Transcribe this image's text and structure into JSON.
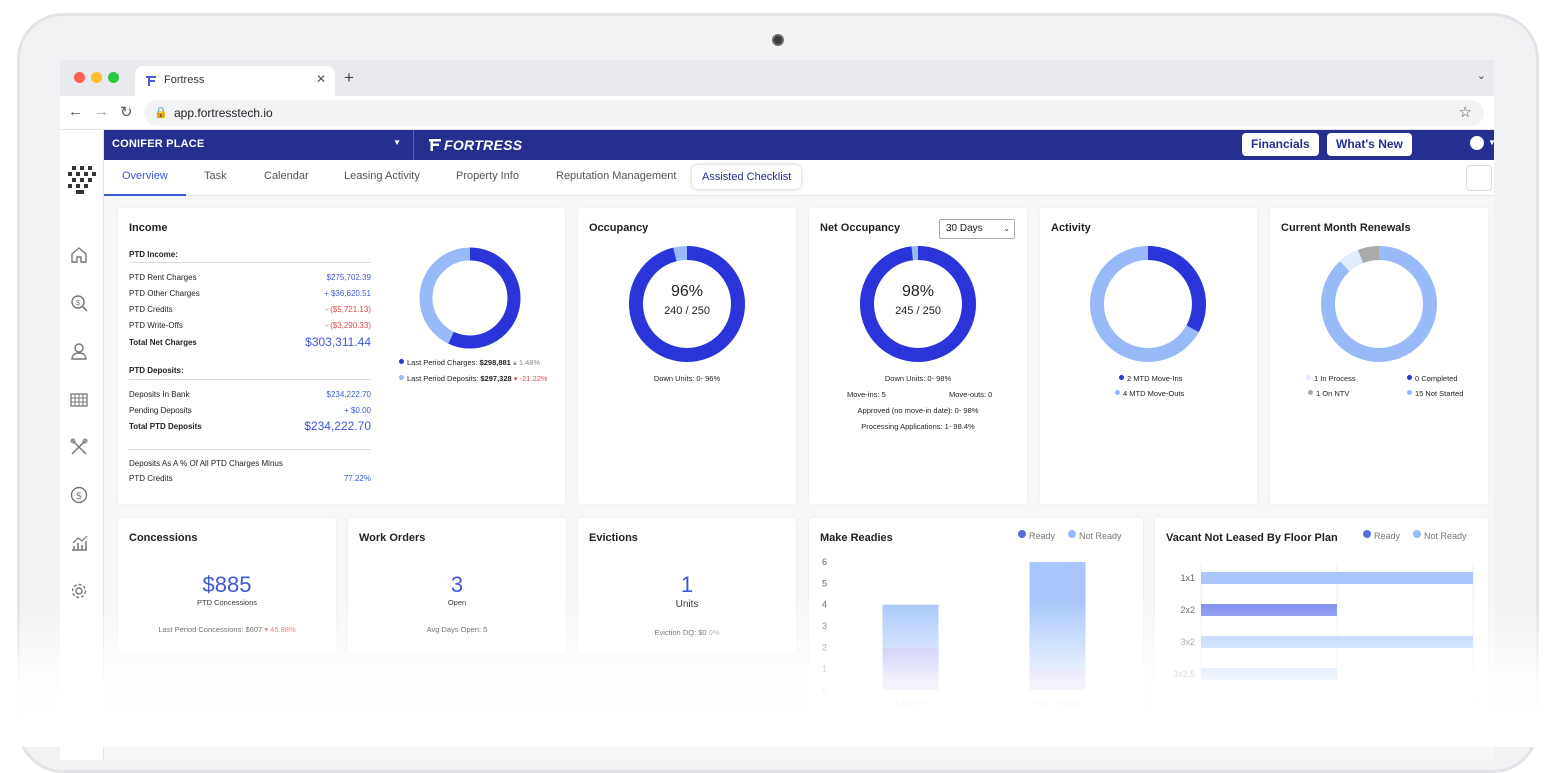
{
  "browser": {
    "tab_title": "Fortress",
    "url": "app.fortresstech.io"
  },
  "topbar": {
    "property": "CONIFER PLACE",
    "brand": "FORTRESS",
    "financials_label": "Financials",
    "whats_new_label": "What's New",
    "help_label": "?"
  },
  "nav": {
    "tabs": [
      "Overview",
      "Task",
      "Calendar",
      "Leasing Activity",
      "Property Info",
      "Reputation Management"
    ],
    "checklist_label": "Assisted Checklist"
  },
  "income": {
    "title": "Income",
    "ptd_income_header": "PTD Income:",
    "rows": [
      {
        "label": "PTD Rent Charges",
        "value": "$275,702.39"
      },
      {
        "label": "PTD Other Charges",
        "value": "+ $36,620.51"
      },
      {
        "label": "PTD Credits",
        "value": "- ($5,721.13)"
      },
      {
        "label": "PTD Write-Offs",
        "value": "- ($3,290.33)"
      }
    ],
    "total_net_label": "Total Net Charges",
    "total_net_value": "$303,311.44",
    "ptd_deposits_header": "PTD Deposits:",
    "deposit_rows": [
      {
        "label": "Deposits In Bank",
        "value": "$234,222.70"
      },
      {
        "label": "Pending Deposits",
        "value": "+ $0.00"
      }
    ],
    "total_deposits_label": "Total PTD Deposits",
    "total_deposits_value": "$234,222.70",
    "pct_label_1": "Deposits As A % Of All PTD Charges Minus",
    "pct_label_2": "PTD Credits",
    "pct_value": "77.22%",
    "legend_charges_label": "Last Period Charges:",
    "legend_charges_value": "$298,881",
    "legend_charges_change": "1.48%",
    "legend_deposits_label": "Last Period Deposits:",
    "legend_deposits_value": "$297,328",
    "legend_deposits_change": "-21.22%",
    "donut_fraction": 0.57
  },
  "occupancy": {
    "title": "Occupancy",
    "percent": "96%",
    "ratio": "240 / 250",
    "down_units": "Down Units: 0- 96%",
    "fraction": 0.96
  },
  "net_occupancy": {
    "title": "Net Occupancy",
    "period": "30 Days",
    "percent": "98%",
    "ratio": "245 / 250",
    "down_units": "Down Units: 0- 98%",
    "move_ins": "Move-ins: 5",
    "move_outs": "Move-outs: 0",
    "approved": "Approved (no move-in date): 0- 98%",
    "processing": "Processing Applications: 1- 98.4%",
    "fraction": 0.98
  },
  "activity": {
    "title": "Activity",
    "legend": [
      "2 MTD Move-Ins",
      "4 MTD Move-Outs"
    ],
    "fraction": 0.33
  },
  "renewals": {
    "title": "Current Month Renewals",
    "legend": [
      "1 In Process",
      "0 Completed",
      "1 On NTV",
      "15 Not Started"
    ]
  },
  "concessions": {
    "title": "Concessions",
    "value": "$885",
    "sub": "PTD Concessions",
    "foot_label": "Last Period Concessions: $607",
    "foot_change": "45.88%"
  },
  "work_orders": {
    "title": "Work Orders",
    "value": "3",
    "sub": "Open",
    "foot": "Avg Days Open: 5"
  },
  "evictions": {
    "title": "Evictions",
    "value": "1",
    "sub": "Units",
    "foot_label": "Eviction DQ: $0",
    "foot_change": "0%"
  },
  "make_readies": {
    "title": "Make Readies",
    "legend_ready": "Ready",
    "legend_not_ready": "Not Ready"
  },
  "vacant": {
    "title": "Vacant Not Leased By Floor Plan",
    "legend_ready": "Ready",
    "legend_not_ready": "Not Ready"
  },
  "colors": {
    "primary": "#2b34d9",
    "light": "#98baf8",
    "navy": "#262f8f",
    "gray": "#aaaaaa",
    "pale": "#e3ecfd"
  },
  "chart_data": [
    {
      "type": "bar",
      "title": "Make Readies",
      "categories": [
        "Leased",
        "Not Leased"
      ],
      "series": [
        {
          "name": "Ready",
          "values": [
            2,
            1
          ]
        },
        {
          "name": "Not Ready",
          "values": [
            2,
            5
          ]
        }
      ],
      "ylim": [
        0,
        6
      ],
      "yticks": [
        0,
        1,
        2,
        3,
        4,
        5,
        6
      ],
      "stacked": true
    },
    {
      "type": "bar",
      "orientation": "horizontal",
      "title": "Vacant Not Leased By Floor Plan",
      "categories": [
        "1x1",
        "2x2",
        "3x2",
        "3x2.5"
      ],
      "series": [
        {
          "name": "Ready",
          "values": [
            0,
            1,
            0,
            0
          ]
        },
        {
          "name": "Not Ready",
          "values": [
            2,
            0,
            2,
            1
          ]
        }
      ],
      "xlim": [
        0,
        2
      ],
      "xticks": [
        0,
        1,
        2
      ]
    }
  ]
}
